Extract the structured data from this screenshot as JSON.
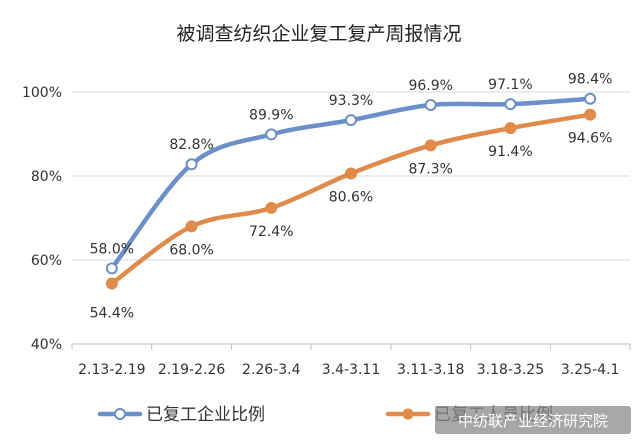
{
  "chart_data": {
    "type": "line",
    "title": "被调查纺织企业复工复产周报情况",
    "categories": [
      "2.13-2.19",
      "2.19-2.26",
      "2.26-3.4",
      "3.4-3.11",
      "3.11-3.18",
      "3.18-3.25",
      "3.25-4.1"
    ],
    "series": [
      {
        "name": "已复工企业比例",
        "values": [
          58.0,
          82.8,
          89.9,
          93.3,
          96.9,
          97.1,
          98.4
        ],
        "labels": [
          "58.0%",
          "82.8%",
          "89.9%",
          "93.3%",
          "96.9%",
          "97.1%",
          "98.4%"
        ],
        "color": "#6b8fc9",
        "marker": "open-circle"
      },
      {
        "name": "已复工人员比例",
        "values": [
          54.4,
          68.0,
          72.4,
          80.6,
          87.3,
          91.4,
          94.6
        ],
        "labels": [
          "54.4%",
          "68.0%",
          "72.4%",
          "80.6%",
          "87.3%",
          "91.4%",
          "94.6%"
        ],
        "color": "#e08a4b",
        "marker": "filled-circle"
      }
    ],
    "y_ticks": [
      "40%",
      "60%",
      "80%",
      "100%"
    ],
    "ylim": [
      40,
      100
    ],
    "grid": true,
    "legend_position": "bottom"
  },
  "watermark": "中纺联产业经济研究院"
}
